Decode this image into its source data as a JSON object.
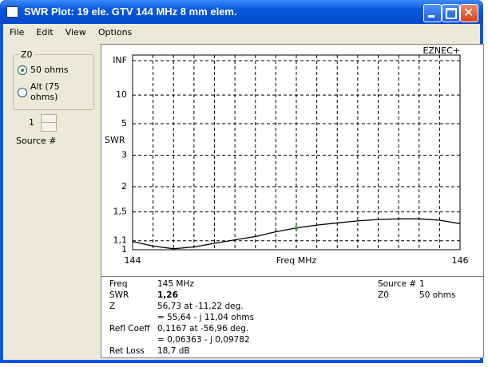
{
  "window": {
    "title": "SWR Plot: 19 ele. GTV 144 MHz 8 mm elem."
  },
  "menu": [
    "File",
    "Edit",
    "View",
    "Options"
  ],
  "z0_group": {
    "title": "Z0",
    "options": [
      "50 ohms",
      "Alt (75 ohms)"
    ]
  },
  "source": {
    "value": "1",
    "label": "Source #"
  },
  "chart_data": {
    "type": "line",
    "corner_label": "EZNEC+",
    "xlabel": "Freq MHz",
    "ylabel": "SWR",
    "x": [
      144,
      144.125,
      144.25,
      144.375,
      144.5,
      144.625,
      144.75,
      144.875,
      145,
      145.125,
      145.25,
      145.375,
      145.5,
      145.625,
      145.75,
      145.875,
      146
    ],
    "series": [
      {
        "color": "#000000",
        "values": [
          1.09,
          1.04,
          1.01,
          1.03,
          1.07,
          1.11,
          1.15,
          1.21,
          1.26,
          1.3,
          1.33,
          1.36,
          1.38,
          1.39,
          1.39,
          1.37,
          1.32
        ]
      }
    ],
    "marker": {
      "x": 145,
      "color": "#3c9a3c"
    },
    "xlim": [
      144,
      146
    ],
    "xticks": [
      144,
      146
    ],
    "ylim": [
      1,
      null
    ],
    "yscale": "reflection",
    "yticks": [
      {
        "value": null,
        "label": "INF"
      },
      10,
      5,
      3,
      2,
      {
        "value": 1.5,
        "label": "1,5"
      },
      {
        "value": 1.1,
        "label": "1,1"
      },
      1
    ],
    "grid": true
  },
  "info": {
    "left": [
      {
        "label": "Freq",
        "value": "145 MHz"
      },
      {
        "label": "SWR",
        "value": "1,26"
      },
      {
        "label": "Z",
        "value": "56,73 at -11,22 deg."
      },
      {
        "value": "= 55,64 - j 11,04 ohms"
      },
      {
        "label": "Refl Coeff",
        "value": "0,1167 at -56,96 deg."
      },
      {
        "value": "= 0,06363 - j 0,09782"
      },
      {
        "label": "Ret Loss",
        "value": "18,7 dB"
      }
    ],
    "right": [
      {
        "label": "Source #",
        "value": "1"
      },
      {
        "label": "Z0",
        "value": "50 ohms"
      }
    ]
  }
}
